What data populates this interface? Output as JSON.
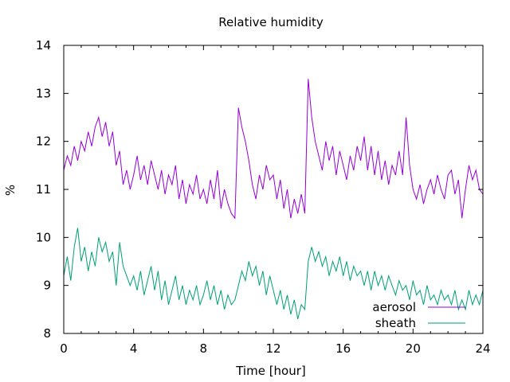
{
  "chart_data": {
    "type": "line",
    "title": "Relative humidity",
    "xlabel": "Time [hour]",
    "ylabel": "%",
    "xlim": [
      0,
      24
    ],
    "ylim": [
      8,
      14
    ],
    "xticks": [
      0,
      4,
      8,
      12,
      16,
      20,
      24
    ],
    "xtick_labels": [
      "0",
      "4",
      "8",
      "12",
      "16",
      "20",
      "24"
    ],
    "yticks": [
      8,
      9,
      10,
      11,
      12,
      13,
      14
    ],
    "ytick_labels": [
      "8",
      "9",
      "10",
      "11",
      "12",
      "13",
      "14"
    ],
    "grid": false,
    "legend_position": "bottom-right",
    "x": [
      0.0,
      0.2,
      0.4,
      0.6,
      0.8,
      1.0,
      1.2,
      1.4,
      1.6,
      1.8,
      2.0,
      2.2,
      2.4,
      2.6,
      2.8,
      3.0,
      3.2,
      3.4,
      3.6,
      3.8,
      4.0,
      4.2,
      4.4,
      4.6,
      4.8,
      5.0,
      5.2,
      5.4,
      5.6,
      5.8,
      6.0,
      6.2,
      6.4,
      6.6,
      6.8,
      7.0,
      7.2,
      7.4,
      7.6,
      7.8,
      8.0,
      8.2,
      8.4,
      8.6,
      8.8,
      9.0,
      9.2,
      9.4,
      9.6,
      9.8,
      10.0,
      10.2,
      10.4,
      10.6,
      10.8,
      11.0,
      11.2,
      11.4,
      11.6,
      11.8,
      12.0,
      12.2,
      12.4,
      12.6,
      12.8,
      13.0,
      13.2,
      13.4,
      13.6,
      13.8,
      14.0,
      14.2,
      14.4,
      14.6,
      14.8,
      15.0,
      15.2,
      15.4,
      15.6,
      15.8,
      16.0,
      16.2,
      16.4,
      16.6,
      16.8,
      17.0,
      17.2,
      17.4,
      17.6,
      17.8,
      18.0,
      18.2,
      18.4,
      18.6,
      18.8,
      19.0,
      19.2,
      19.4,
      19.6,
      19.8,
      20.0,
      20.2,
      20.4,
      20.6,
      20.8,
      21.0,
      21.2,
      21.4,
      21.6,
      21.8,
      22.0,
      22.2,
      22.4,
      22.6,
      22.8,
      23.0,
      23.2,
      23.4,
      23.6,
      23.8,
      24.0
    ],
    "series": [
      {
        "name": "aerosol",
        "color": "#9400d3",
        "values": [
          11.4,
          11.7,
          11.5,
          11.9,
          11.6,
          12.0,
          11.8,
          12.2,
          11.9,
          12.3,
          12.5,
          12.1,
          12.4,
          11.9,
          12.2,
          11.5,
          11.8,
          11.1,
          11.4,
          11.0,
          11.3,
          11.7,
          11.2,
          11.5,
          11.1,
          11.6,
          11.3,
          11.0,
          11.4,
          10.9,
          11.3,
          11.1,
          11.5,
          10.8,
          11.2,
          10.7,
          11.1,
          10.9,
          11.3,
          10.8,
          11.0,
          10.7,
          11.2,
          10.8,
          11.4,
          10.6,
          11.0,
          10.7,
          10.5,
          10.4,
          12.7,
          12.3,
          12.0,
          11.6,
          11.1,
          10.8,
          11.3,
          11.0,
          11.5,
          11.2,
          11.3,
          10.8,
          11.2,
          10.6,
          11.0,
          10.4,
          10.8,
          10.5,
          10.9,
          10.5,
          13.3,
          12.5,
          12.0,
          11.7,
          11.4,
          12.0,
          11.6,
          11.9,
          11.3,
          11.8,
          11.5,
          11.2,
          11.7,
          11.4,
          11.9,
          11.6,
          12.1,
          11.4,
          11.9,
          11.3,
          11.8,
          11.2,
          11.6,
          11.1,
          11.5,
          11.3,
          11.8,
          11.3,
          12.5,
          11.5,
          11.0,
          10.8,
          11.1,
          10.7,
          11.0,
          11.2,
          10.9,
          11.3,
          11.0,
          10.8,
          11.3,
          11.4,
          10.9,
          11.2,
          10.4,
          11.0,
          11.5,
          11.2,
          11.4,
          11.0,
          10.9
        ]
      },
      {
        "name": "sheath",
        "color": "#009e73",
        "values": [
          9.2,
          9.6,
          9.1,
          9.8,
          10.2,
          9.5,
          9.8,
          9.3,
          9.7,
          9.4,
          10.0,
          9.7,
          9.9,
          9.5,
          9.7,
          9.0,
          9.9,
          9.4,
          9.2,
          9.0,
          9.2,
          8.9,
          9.3,
          8.8,
          9.1,
          9.4,
          8.9,
          9.3,
          8.7,
          9.1,
          8.6,
          8.9,
          9.2,
          8.7,
          9.0,
          8.6,
          8.9,
          8.7,
          9.0,
          8.6,
          8.8,
          9.1,
          8.7,
          9.0,
          8.6,
          8.9,
          8.5,
          8.8,
          8.6,
          8.7,
          9.0,
          9.3,
          9.1,
          9.5,
          9.2,
          9.4,
          9.0,
          9.3,
          8.8,
          9.2,
          8.9,
          8.6,
          8.9,
          8.5,
          8.8,
          8.4,
          8.7,
          8.3,
          8.6,
          8.5,
          9.5,
          9.8,
          9.5,
          9.7,
          9.4,
          9.6,
          9.2,
          9.5,
          9.3,
          9.6,
          9.2,
          9.5,
          9.1,
          9.4,
          9.2,
          9.3,
          9.0,
          9.3,
          8.9,
          9.3,
          9.0,
          9.2,
          8.9,
          9.2,
          9.0,
          8.8,
          9.1,
          8.9,
          9.0,
          8.7,
          9.1,
          8.8,
          8.9,
          8.6,
          9.0,
          8.7,
          8.8,
          8.6,
          8.9,
          8.7,
          8.8,
          8.6,
          8.9,
          8.5,
          8.7,
          8.5,
          8.9,
          8.6,
          8.8,
          8.6,
          8.9
        ]
      }
    ]
  }
}
